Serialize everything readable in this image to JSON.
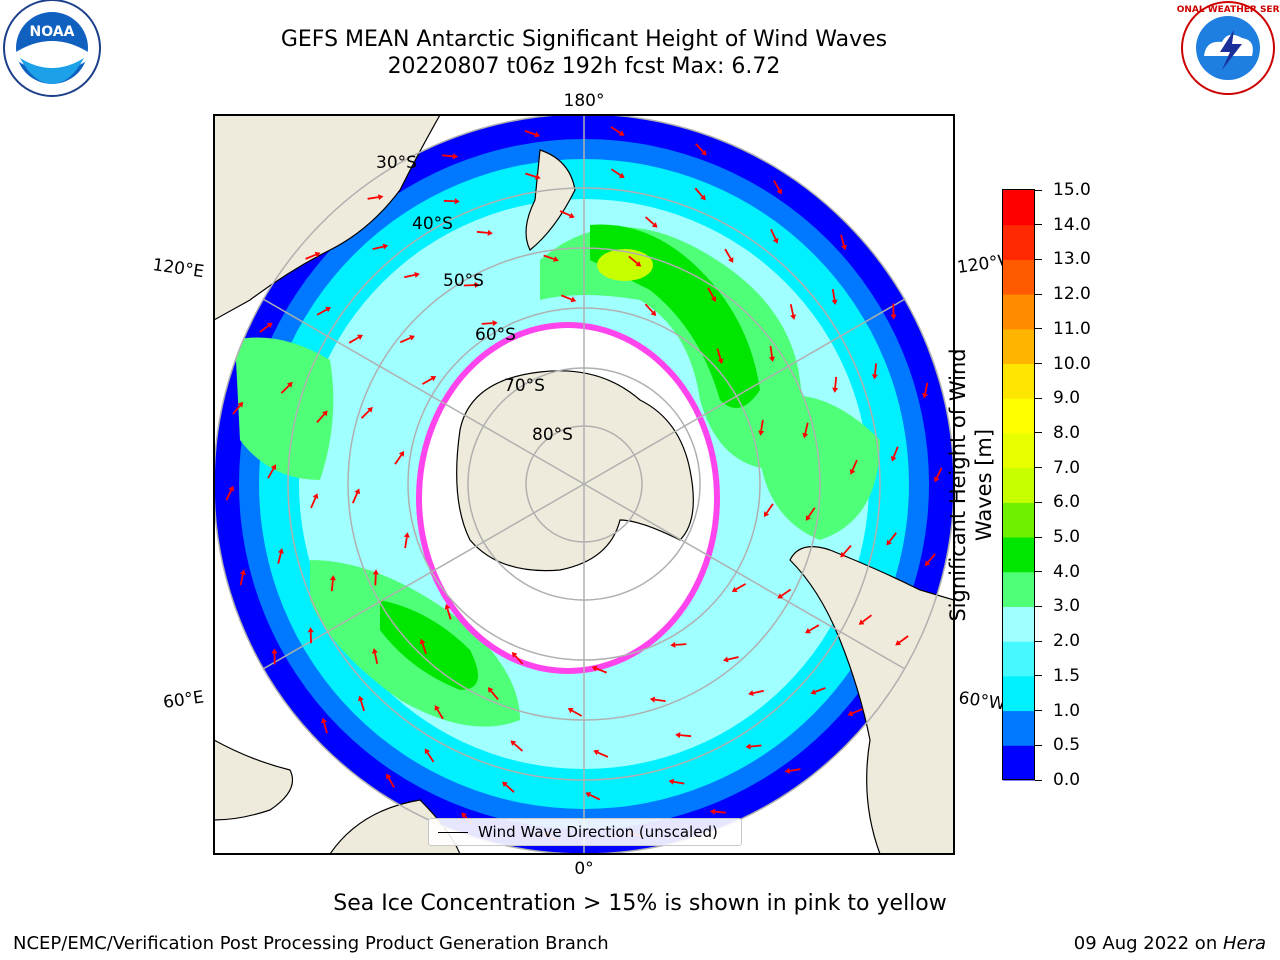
{
  "header": {
    "title_line1": "GEFS MEAN Antarctic Significant Height of Wind Waves",
    "title_line2": "20220807 t06z 192h fcst   Max: 6.72"
  },
  "logos": {
    "left": "NOAA",
    "right": "NATIONAL WEATHER SERVICE"
  },
  "map": {
    "projection": "south-polar-stereographic",
    "longitude_labels": {
      "top": "180°",
      "bottom": "0°",
      "upper_left": "120°E",
      "lower_left": "60°E",
      "upper_right": "120°W",
      "lower_right": "60°W"
    },
    "latitude_labels": [
      "30°S",
      "40°S",
      "50°S",
      "60°S",
      "70°S",
      "80°S"
    ],
    "legend": "Wind Wave Direction (unscaled)",
    "land_color": "#efebdc",
    "arrow_color": "#ff0000",
    "sea_ice_color": "#ff44ee"
  },
  "colorbar": {
    "title": "Significant Height of Wind Waves [m]",
    "ticks": [
      "0.0",
      "0.5",
      "1.0",
      "1.5",
      "2.0",
      "3.0",
      "4.0",
      "5.0",
      "6.0",
      "7.0",
      "8.0",
      "9.0",
      "10.0",
      "11.0",
      "12.0",
      "13.0",
      "14.0",
      "15.0"
    ],
    "colors": [
      "#0000ff",
      "#0078ff",
      "#00f0ff",
      "#46f8ff",
      "#a0ffff",
      "#50ff78",
      "#00e600",
      "#6ef000",
      "#c8ff00",
      "#e8ff00",
      "#ffff00",
      "#ffe600",
      "#ffb400",
      "#ff8c00",
      "#ff5a00",
      "#ff2800",
      "#ff0000"
    ]
  },
  "footer": {
    "note": "Sea Ice Concentration > 15% is shown in pink to yellow",
    "left": "NCEP/EMC/Verification Post Processing Product Generation Branch",
    "right_date": "09 Aug 2022 on ",
    "right_host": "Hera"
  }
}
